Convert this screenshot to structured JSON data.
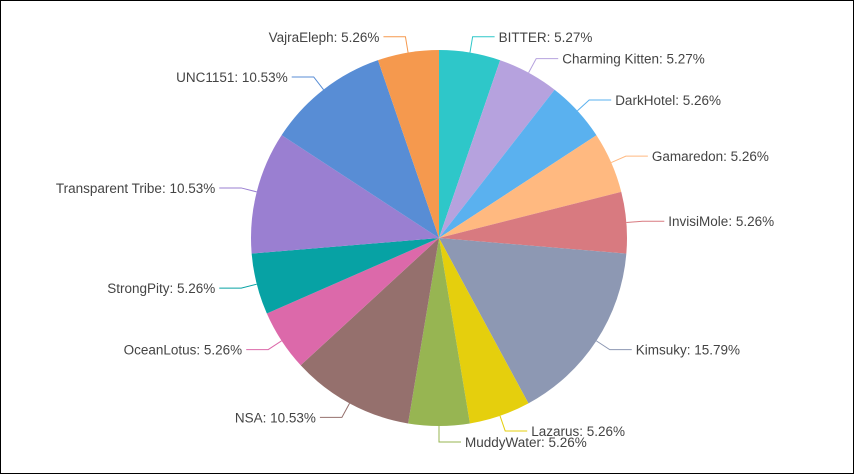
{
  "chart_data": {
    "type": "pie",
    "slices": [
      {
        "label": "BITTER",
        "value": 5.27,
        "text": "BITTER: 5.27%",
        "color": "#2ec7c9"
      },
      {
        "label": "Charming Kitten",
        "value": 5.27,
        "text": "Charming Kitten: 5.27%",
        "color": "#b6a2de"
      },
      {
        "label": "DarkHotel",
        "value": 5.26,
        "text": "DarkHotel: 5.26%",
        "color": "#5ab1ef"
      },
      {
        "label": "Gamaredon",
        "value": 5.26,
        "text": "Gamaredon: 5.26%",
        "color": "#ffb980"
      },
      {
        "label": "InvisiMole",
        "value": 5.26,
        "text": "InvisiMole: 5.26%",
        "color": "#d87a80"
      },
      {
        "label": "Kimsuky",
        "value": 15.79,
        "text": "Kimsuky: 15.79%",
        "color": "#8d98b3"
      },
      {
        "label": "Lazarus",
        "value": 5.26,
        "text": "Lazarus: 5.26%",
        "color": "#e5cf0d"
      },
      {
        "label": "MuddyWater",
        "value": 5.26,
        "text": "MuddyWater: 5.26%",
        "color": "#97b552"
      },
      {
        "label": "NSA",
        "value": 10.53,
        "text": "NSA: 10.53%",
        "color": "#95706d"
      },
      {
        "label": "OceanLotus",
        "value": 5.26,
        "text": "OceanLotus: 5.26%",
        "color": "#dc69aa"
      },
      {
        "label": "StrongPity",
        "value": 5.26,
        "text": "StrongPity: 5.26%",
        "color": "#07a2a4"
      },
      {
        "label": "Transparent Tribe",
        "value": 10.53,
        "text": "Transparent Tribe: 10.53%",
        "color": "#9a7fd1"
      },
      {
        "label": "UNC1151",
        "value": 10.53,
        "text": "UNC1151: 10.53%",
        "color": "#588dd5"
      },
      {
        "label": "VajraEleph",
        "value": 5.26,
        "text": "VajraEleph: 5.26%",
        "color": "#f5994e"
      }
    ],
    "start_angle": "top",
    "direction": "clockwise",
    "legend": "none"
  }
}
